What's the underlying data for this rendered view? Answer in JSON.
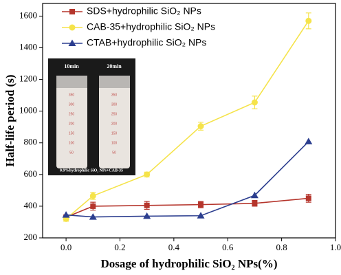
{
  "chart_data": {
    "type": "line",
    "x_label": "Dosage of hydrophilic SiO₂  NPs(%)",
    "y_label": "Half-life period (s)",
    "x": [
      0,
      0.1,
      0.3,
      0.5,
      0.7,
      0.9
    ],
    "series": [
      {
        "name": "SDS+hydrophilic SiO₂ NPs",
        "color": "#b5352c",
        "marker": "square",
        "values": [
          330,
          400,
          405,
          410,
          418,
          450
        ],
        "errors": [
          15,
          25,
          25,
          20,
          18,
          25
        ]
      },
      {
        "name": "CAB-35+hydrophilic SiO₂ NPs",
        "color": "#f5e34a",
        "marker": "circle",
        "values": [
          320,
          465,
          600,
          905,
          1055,
          1570
        ],
        "errors": [
          15,
          22,
          15,
          25,
          40,
          50
        ]
      },
      {
        "name": "CTAB+hydrophilic SiO₂ NPs",
        "color": "#2c3e8f",
        "marker": "triangle",
        "values": [
          345,
          332,
          337,
          340,
          468,
          808
        ]
      }
    ],
    "xlim": [
      -0.087,
      1.0
    ],
    "ylim": [
      200,
      1680
    ],
    "xticks": [
      {
        "value": 0,
        "label": "0.0"
      },
      0.2,
      0.4,
      0.6,
      0.8,
      {
        "value": 1,
        "label": "1.0"
      }
    ],
    "yticks": [
      200,
      400,
      600,
      800,
      1000,
      1200,
      1400,
      1600
    ],
    "legend": "upper left",
    "inset": {
      "labels": [
        "10min",
        "20min"
      ],
      "caption": "0.9%hydrophilic SiO₂ NPs+CAB-35",
      "graduations": [
        "350",
        "300",
        "250",
        "200",
        "150",
        "100",
        "50"
      ]
    }
  }
}
